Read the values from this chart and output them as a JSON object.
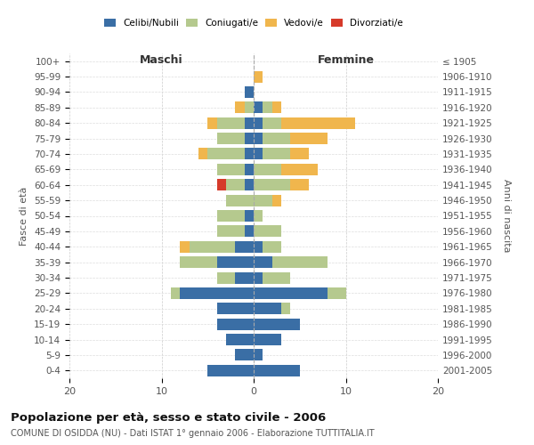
{
  "age_groups": [
    "100+",
    "95-99",
    "90-94",
    "85-89",
    "80-84",
    "75-79",
    "70-74",
    "65-69",
    "60-64",
    "55-59",
    "50-54",
    "45-49",
    "40-44",
    "35-39",
    "30-34",
    "25-29",
    "20-24",
    "15-19",
    "10-14",
    "5-9",
    "0-4"
  ],
  "birth_years": [
    "≤ 1905",
    "1906-1910",
    "1911-1915",
    "1916-1920",
    "1921-1925",
    "1926-1930",
    "1931-1935",
    "1936-1940",
    "1941-1945",
    "1946-1950",
    "1951-1955",
    "1956-1960",
    "1961-1965",
    "1966-1970",
    "1971-1975",
    "1976-1980",
    "1981-1985",
    "1986-1990",
    "1991-1995",
    "1996-2000",
    "2001-2005"
  ],
  "male": {
    "celibi": [
      0,
      0,
      1,
      0,
      1,
      1,
      1,
      1,
      1,
      0,
      1,
      1,
      2,
      4,
      2,
      8,
      4,
      4,
      3,
      2,
      5
    ],
    "coniugati": [
      0,
      0,
      0,
      1,
      3,
      3,
      4,
      3,
      2,
      3,
      3,
      3,
      5,
      4,
      2,
      1,
      0,
      0,
      0,
      0,
      0
    ],
    "vedovi": [
      0,
      0,
      0,
      1,
      1,
      0,
      1,
      0,
      0,
      0,
      0,
      0,
      1,
      0,
      0,
      0,
      0,
      0,
      0,
      0,
      0
    ],
    "divorziati": [
      0,
      0,
      0,
      0,
      0,
      0,
      0,
      0,
      1,
      0,
      0,
      0,
      0,
      0,
      0,
      0,
      0,
      0,
      0,
      0,
      0
    ]
  },
  "female": {
    "nubili": [
      0,
      0,
      0,
      1,
      1,
      1,
      1,
      0,
      0,
      0,
      0,
      0,
      1,
      2,
      1,
      8,
      3,
      5,
      3,
      1,
      5
    ],
    "coniugate": [
      0,
      0,
      0,
      1,
      2,
      3,
      3,
      3,
      4,
      2,
      1,
      3,
      2,
      6,
      3,
      2,
      1,
      0,
      0,
      0,
      0
    ],
    "vedove": [
      0,
      1,
      0,
      1,
      8,
      4,
      2,
      4,
      2,
      1,
      0,
      0,
      0,
      0,
      0,
      0,
      0,
      0,
      0,
      0,
      0
    ],
    "divorziate": [
      0,
      0,
      0,
      0,
      0,
      0,
      0,
      0,
      0,
      0,
      0,
      0,
      0,
      0,
      0,
      0,
      0,
      0,
      0,
      0,
      0
    ]
  },
  "colors": {
    "celibi_nubili": "#3a6ea5",
    "coniugati": "#b5c98e",
    "vedovi": "#f0b64d",
    "divorziati": "#d63a2a"
  },
  "xlim": 20,
  "title": "Popolazione per età, sesso e stato civile - 2006",
  "subtitle": "COMUNE DI OSIDDA (NU) - Dati ISTAT 1° gennaio 2006 - Elaborazione TUTTITALIA.IT",
  "ylabel_left": "Fasce di età",
  "ylabel_right": "Anni di nascita",
  "maschi_label": "Maschi",
  "femmine_label": "Femmine"
}
